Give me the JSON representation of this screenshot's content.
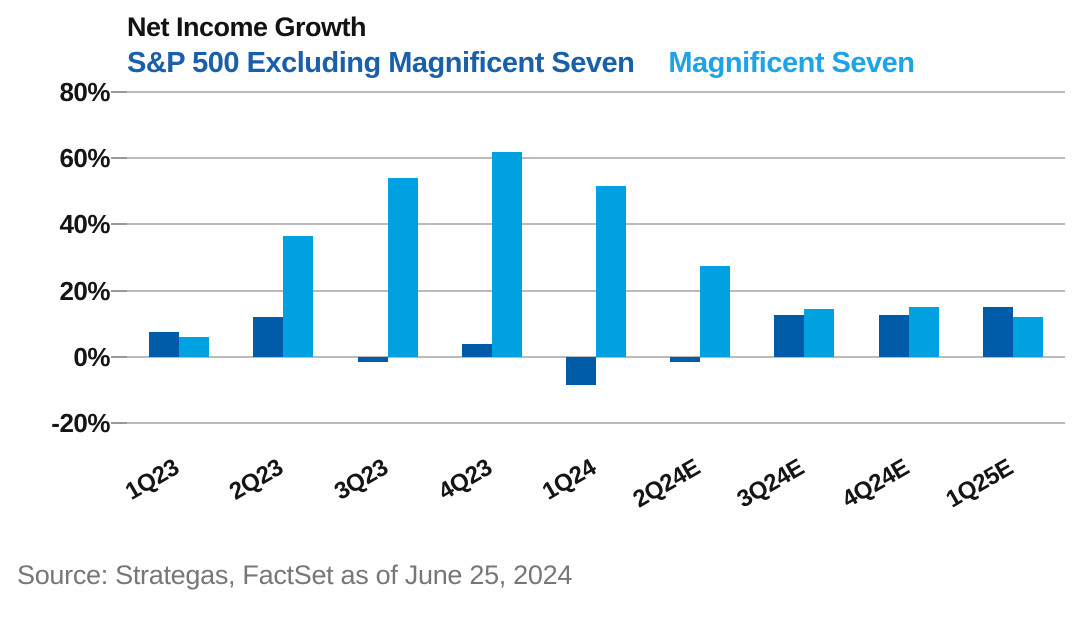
{
  "header": {
    "title": "Net Income Growth",
    "legend": [
      {
        "label": "S&P 500 Excluding Magnificent Seven",
        "color": "#1a5fa9"
      },
      {
        "label": "Magnificent Seven",
        "color": "#1ea3e6"
      }
    ]
  },
  "footer": {
    "source": "Source: Strategas, FactSet as of June 25, 2024"
  },
  "chart_data": {
    "type": "bar",
    "title": "Net Income Growth",
    "categories": [
      "1Q23",
      "2Q23",
      "3Q23",
      "4Q23",
      "1Q24",
      "2Q24E",
      "3Q24E",
      "4Q24E",
      "1Q25E"
    ],
    "series": [
      {
        "name": "S&P 500 Excluding Magnificent Seven",
        "key": "sp500-ex-mag7",
        "color": "#005ca8",
        "values": [
          7.5,
          12,
          -1.5,
          4,
          -8.5,
          -1.5,
          12.5,
          12.5,
          15
        ]
      },
      {
        "name": "Magnificent Seven",
        "key": "mag7",
        "color": "#00a1e1",
        "values": [
          6,
          36.5,
          54,
          62,
          51.5,
          27.5,
          14.5,
          15,
          12
        ]
      }
    ],
    "xlabel": "",
    "ylabel": "",
    "ylim": [
      -20,
      80
    ],
    "yticks": [
      {
        "value": 80,
        "label": "80%"
      },
      {
        "value": 60,
        "label": "60%"
      },
      {
        "value": 40,
        "label": "40%"
      },
      {
        "value": 20,
        "label": "20%"
      },
      {
        "value": 0,
        "label": "0%"
      },
      {
        "value": -20,
        "label": "-20%"
      }
    ],
    "grid": true,
    "legend_position": "top"
  }
}
